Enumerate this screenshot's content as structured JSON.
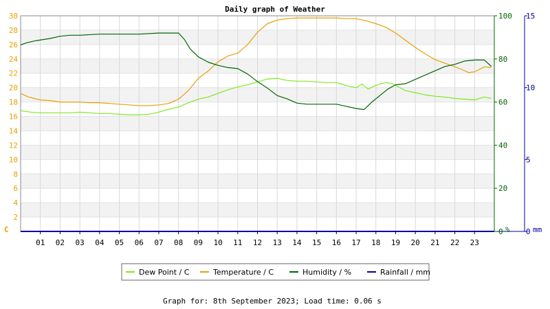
{
  "chart_data": {
    "type": "line",
    "title": "Daily graph of Weather",
    "footer": "Graph for: 8th September 2023; Load time: 0.06 s",
    "x_ticks": [
      "01",
      "02",
      "03",
      "04",
      "05",
      "06",
      "07",
      "08",
      "09",
      "10",
      "11",
      "12",
      "13",
      "14",
      "15",
      "16",
      "17",
      "18",
      "19",
      "20",
      "21",
      "22",
      "23"
    ],
    "xlim": [
      0,
      24
    ],
    "axes": {
      "left": {
        "unit": "C",
        "min": 0,
        "max": 30,
        "step": 2,
        "color": "#e8a000"
      },
      "mid": {
        "unit": "%",
        "min": 0,
        "max": 100,
        "step": 20,
        "color": "#006400"
      },
      "right": {
        "unit": "mm",
        "min": 0,
        "max": 15,
        "step": 5,
        "color": "#0000a0"
      }
    },
    "legend": {
      "placement": "bottom",
      "entries": [
        "Dew Point / C",
        "Temperature / C",
        "Humidity / %",
        "Rainfall / mm"
      ]
    },
    "series": [
      {
        "name": "Dew Point / C",
        "axis": "left",
        "color": "#80e820",
        "x": [
          0,
          0.5,
          1,
          1.5,
          2,
          2.5,
          3,
          3.5,
          4,
          4.5,
          5,
          5.5,
          6,
          6.5,
          7,
          7.5,
          8,
          8.5,
          9,
          9.5,
          10,
          10.5,
          11,
          11.5,
          12,
          12.5,
          13,
          13.5,
          14,
          14.5,
          15,
          15.5,
          16,
          16.5,
          17,
          17.3,
          17.6,
          17.9,
          18.2,
          18.5,
          18.8,
          19,
          19.5,
          20,
          20.5,
          21,
          21.5,
          22,
          22.5,
          23,
          23.5,
          23.85
        ],
        "y": [
          16.8,
          16.6,
          16.5,
          16.5,
          16.5,
          16.5,
          16.6,
          16.5,
          16.4,
          16.4,
          16.3,
          16.2,
          16.2,
          16.3,
          16.6,
          17.0,
          17.3,
          17.9,
          18.4,
          18.7,
          19.2,
          19.7,
          20.1,
          20.4,
          20.8,
          21.2,
          21.3,
          21.0,
          20.9,
          20.9,
          20.8,
          20.7,
          20.7,
          20.3,
          20.0,
          20.5,
          19.8,
          20.2,
          20.5,
          20.7,
          20.6,
          20.3,
          19.6,
          19.3,
          19.0,
          18.8,
          18.7,
          18.5,
          18.4,
          18.3,
          18.7,
          18.5
        ]
      },
      {
        "name": "Temperature / C",
        "axis": "left",
        "color": "#e8a000",
        "x": [
          0,
          0.4,
          1,
          1.5,
          2,
          2.5,
          3,
          3.5,
          4,
          4.5,
          5,
          5.5,
          6,
          6.5,
          7,
          7.5,
          8,
          8.5,
          9,
          9.5,
          10,
          10.5,
          11,
          11.5,
          12,
          12.5,
          13,
          13.5,
          14,
          14.5,
          15,
          15.5,
          16,
          16.5,
          17,
          17.5,
          18,
          18.5,
          19,
          19.5,
          20,
          20.5,
          21,
          21.5,
          22,
          22.3,
          22.7,
          23,
          23.5,
          23.85
        ],
        "y": [
          19.2,
          18.7,
          18.3,
          18.2,
          18.0,
          18.0,
          18.0,
          17.9,
          17.9,
          17.8,
          17.7,
          17.6,
          17.5,
          17.5,
          17.6,
          17.8,
          18.4,
          19.6,
          21.3,
          22.3,
          23.6,
          24.4,
          24.8,
          26.0,
          27.7,
          28.9,
          29.4,
          29.6,
          29.7,
          29.7,
          29.7,
          29.7,
          29.7,
          29.6,
          29.6,
          29.3,
          28.9,
          28.4,
          27.6,
          26.6,
          25.6,
          24.7,
          23.9,
          23.4,
          22.9,
          22.6,
          22.1,
          22.2,
          22.9,
          22.8
        ]
      },
      {
        "name": "Humidity / %",
        "axis": "mid",
        "color": "#006400",
        "x": [
          0,
          0.3,
          0.8,
          1.5,
          2,
          2.5,
          3,
          4,
          5,
          6,
          7,
          8,
          8.3,
          8.6,
          9,
          9.5,
          10,
          10.5,
          11,
          11.5,
          12,
          12.5,
          13,
          13.5,
          14,
          14.5,
          15,
          15.5,
          16,
          16.5,
          17,
          17.4,
          17.8,
          18.2,
          18.6,
          19,
          19.5,
          20,
          20.5,
          21,
          21.5,
          22,
          22.5,
          23,
          23.5,
          23.85
        ],
        "y": [
          86.5,
          87.5,
          88.5,
          89.5,
          90.5,
          91,
          91,
          91.5,
          91.5,
          91.5,
          92,
          92,
          89,
          84.5,
          81,
          78.5,
          77,
          76,
          75.5,
          73,
          69.5,
          66.5,
          63,
          61.5,
          59.5,
          59,
          59,
          59,
          59,
          58,
          57,
          56.5,
          60,
          63,
          66,
          68,
          68.5,
          70.5,
          72.5,
          74.5,
          76.5,
          77.5,
          79,
          79.5,
          79.5,
          76.5
        ]
      },
      {
        "name": "Rainfall / mm",
        "axis": "right",
        "color": "#0000a0",
        "x": [
          0,
          24
        ],
        "y": [
          0,
          0
        ]
      }
    ]
  }
}
